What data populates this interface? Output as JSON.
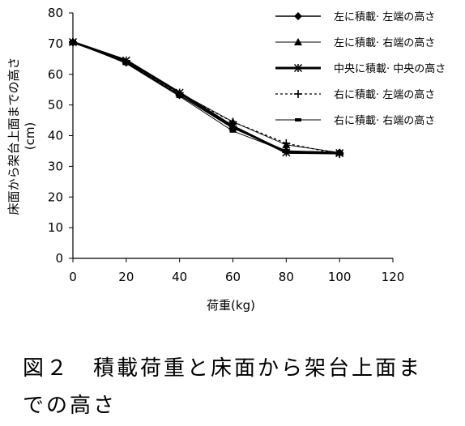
{
  "chart_data": {
    "type": "line",
    "xlabel": "荷重(kg)",
    "ylabel": "床面から架台上面までの高さ",
    "ylabel_unit": "(cm)",
    "xlim": [
      0,
      120
    ],
    "ylim": [
      0,
      80
    ],
    "xticks": [
      0,
      20,
      40,
      60,
      80,
      100,
      120
    ],
    "yticks": [
      0,
      10,
      20,
      30,
      40,
      50,
      60,
      70,
      80
    ],
    "grid": false,
    "legend_position": "top-right",
    "x": [
      0,
      20,
      40,
      60,
      80,
      100
    ],
    "series": [
      {
        "name": "左に積載· 左端の高さ",
        "values": [
          70.5,
          63.8,
          53.2,
          42.5,
          35.0,
          34.5
        ],
        "marker": "diamond",
        "line": "solid-medium"
      },
      {
        "name": "左に積載· 右端の高さ",
        "values": [
          70.5,
          64.2,
          54.0,
          44.5,
          37.0,
          34.5
        ],
        "marker": "triangle",
        "line": "solid-thin"
      },
      {
        "name": "中央に積載· 中央の高さ",
        "values": [
          70.5,
          64.5,
          54.0,
          43.0,
          34.5,
          34.3
        ],
        "marker": "asterisk",
        "line": "solid-thick"
      },
      {
        "name": "右に積載· 左端の高さ",
        "values": [
          70.5,
          64.0,
          53.5,
          44.5,
          37.5,
          34.0
        ],
        "marker": "plus",
        "line": "dotted"
      },
      {
        "name": "右に積載· 右端の高さ",
        "values": [
          70.8,
          63.5,
          52.8,
          41.5,
          34.8,
          34.5
        ],
        "marker": "dash",
        "line": "solid-thin"
      }
    ]
  },
  "caption": {
    "line1": "図２　積載荷重と床面から架台上面ま",
    "line2": "での高さ"
  }
}
